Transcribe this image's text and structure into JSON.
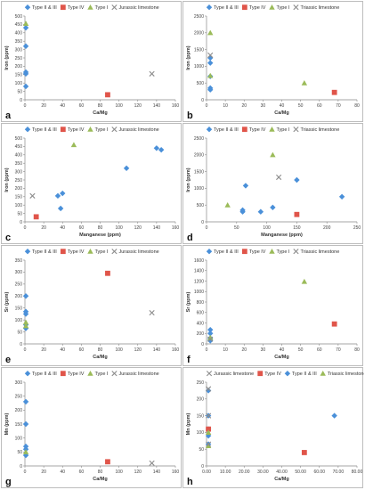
{
  "colors": {
    "Type II & III": "#4a90d9",
    "Type IV": "#e0554a",
    "Type I": "#9bbb59",
    "Jurassic limestone": "#8c8c8c",
    "Triassic limestone": "#8c8c8c"
  },
  "marker_shapes": {
    "Type II & III": "diamond",
    "Type IV": "square",
    "Type I": "triangle",
    "Jurassic limestone": "cross",
    "Triassic limestone": "cross"
  },
  "chart_data": [
    {
      "type": "scatter",
      "letter": "a",
      "xlabel": "Ca/Mg",
      "ylabel": "Iron (ppm)",
      "xlim": [
        0,
        160
      ],
      "xticks": [
        "0",
        "20",
        "40",
        "60",
        "80",
        "100",
        "120",
        "140",
        "160"
      ],
      "ylim": [
        0,
        500
      ],
      "yticks": [
        "0",
        "50",
        "100",
        "150",
        "200",
        "250",
        "300",
        "350",
        "400",
        "450",
        "500"
      ],
      "series": [
        {
          "name": "Type II & III",
          "points": [
            [
              1,
              430
            ],
            [
              1,
              320
            ],
            [
              1,
              165
            ],
            [
              1,
              155
            ],
            [
              1,
              80
            ]
          ]
        },
        {
          "name": "Type IV",
          "points": [
            [
              88,
              30
            ]
          ]
        },
        {
          "name": "Type I",
          "points": [
            [
              1,
              455
            ]
          ]
        },
        {
          "name": "Jurassic limestone",
          "points": [
            [
              135,
              155
            ]
          ]
        }
      ]
    },
    {
      "type": "scatter",
      "letter": "b",
      "xlabel": "Ca/Mg",
      "ylabel": "Iron (ppm)",
      "xlim": [
        0,
        80
      ],
      "xticks": [
        "0",
        "10",
        "20",
        "30",
        "40",
        "50",
        "60",
        "70",
        "80"
      ],
      "ylim": [
        0,
        2500
      ],
      "yticks": [
        "0",
        "500",
        "1000",
        "1500",
        "2000",
        "2500"
      ],
      "series": [
        {
          "name": "Type II & III",
          "points": [
            [
              2,
              1250
            ],
            [
              2,
              1100
            ],
            [
              2,
              700
            ],
            [
              2,
              350
            ],
            [
              2,
              300
            ]
          ]
        },
        {
          "name": "Type IV",
          "points": [
            [
              68,
              220
            ]
          ]
        },
        {
          "name": "Type I",
          "points": [
            [
              2,
              2000
            ],
            [
              2,
              720
            ],
            [
              52,
              500
            ]
          ]
        },
        {
          "name": "Triassic limestone",
          "points": [
            [
              2,
              1330
            ]
          ]
        }
      ]
    },
    {
      "type": "scatter",
      "letter": "c",
      "xlabel": "Manganese (ppm)",
      "ylabel": "Iron (ppm)",
      "xlim": [
        0,
        160
      ],
      "xticks": [
        "0",
        "20",
        "40",
        "60",
        "80",
        "100",
        "120",
        "140",
        "160"
      ],
      "ylim": [
        0,
        500
      ],
      "yticks": [
        "0",
        "50",
        "100",
        "150",
        "200",
        "250",
        "300",
        "350",
        "400",
        "450",
        "500"
      ],
      "series": [
        {
          "name": "Type II & III",
          "points": [
            [
              35,
              155
            ],
            [
              38,
              80
            ],
            [
              40,
              170
            ],
            [
              108,
              320
            ],
            [
              140,
              440
            ],
            [
              145,
              430
            ]
          ]
        },
        {
          "name": "Type IV",
          "points": [
            [
              12,
              30
            ]
          ]
        },
        {
          "name": "Type I",
          "points": [
            [
              52,
              460
            ]
          ]
        },
        {
          "name": "Jurassic limestone",
          "points": [
            [
              8,
              155
            ]
          ]
        }
      ]
    },
    {
      "type": "scatter",
      "letter": "d",
      "xlabel": "Manganese (ppm)",
      "ylabel": "Iron (ppm)",
      "xlim": [
        0,
        250
      ],
      "xticks": [
        "0",
        "50",
        "100",
        "150",
        "200",
        "250"
      ],
      "ylim": [
        0,
        2500
      ],
      "yticks": [
        "0",
        "500",
        "1000",
        "1500",
        "2000",
        "2500"
      ],
      "series": [
        {
          "name": "Type II & III",
          "points": [
            [
              60,
              350
            ],
            [
              60,
              300
            ],
            [
              65,
              1080
            ],
            [
              90,
              300
            ],
            [
              110,
              430
            ],
            [
              150,
              1250
            ],
            [
              225,
              750
            ]
          ]
        },
        {
          "name": "Type IV",
          "points": [
            [
              150,
              220
            ]
          ]
        },
        {
          "name": "Type I",
          "points": [
            [
              35,
              500
            ],
            [
              110,
              2000
            ]
          ]
        },
        {
          "name": "Triassic limestone",
          "points": [
            [
              120,
              1330
            ]
          ]
        }
      ]
    },
    {
      "type": "scatter",
      "letter": "e",
      "xlabel": "Ca/Mg",
      "ylabel": "Sr (ppm)",
      "xlim": [
        0,
        160
      ],
      "xticks": [
        "0",
        "20",
        "40",
        "60",
        "80",
        "100",
        "120",
        "140",
        "160"
      ],
      "ylim": [
        0,
        350
      ],
      "yticks": [
        "0",
        "50",
        "100",
        "150",
        "200",
        "250",
        "300",
        "350"
      ],
      "series": [
        {
          "name": "Type II & III",
          "points": [
            [
              1,
              200
            ],
            [
              1,
              135
            ],
            [
              1,
              125
            ],
            [
              1,
              80
            ],
            [
              1,
              65
            ]
          ]
        },
        {
          "name": "Type IV",
          "points": [
            [
              88,
              295
            ]
          ]
        },
        {
          "name": "Type I",
          "points": [
            [
              1,
              90
            ],
            [
              1,
              75
            ]
          ]
        },
        {
          "name": "Jurassic limestone",
          "points": [
            [
              135,
              130
            ]
          ]
        }
      ]
    },
    {
      "type": "scatter",
      "letter": "f",
      "xlabel": "Ca/Mg",
      "ylabel": "Sr (ppm)",
      "xlim": [
        0,
        80
      ],
      "xticks": [
        "0",
        "10",
        "20",
        "30",
        "40",
        "50",
        "60",
        "70",
        "80"
      ],
      "ylim": [
        0,
        1600
      ],
      "yticks": [
        "0",
        "200",
        "400",
        "600",
        "800",
        "1000",
        "1200",
        "1400",
        "1600"
      ],
      "series": [
        {
          "name": "Type II & III",
          "points": [
            [
              2,
              270
            ],
            [
              2,
              200
            ],
            [
              2,
              110
            ],
            [
              2,
              80
            ],
            [
              2,
              60
            ]
          ]
        },
        {
          "name": "Type IV",
          "points": [
            [
              68,
              380
            ]
          ]
        },
        {
          "name": "Type I",
          "points": [
            [
              2,
              120
            ],
            [
              52,
              1190
            ]
          ]
        },
        {
          "name": "Triassic limestone",
          "points": [
            [
              2,
              90
            ]
          ]
        }
      ]
    },
    {
      "type": "scatter",
      "letter": "g",
      "xlabel": "Ca/Mg",
      "ylabel": "Mn (ppm)",
      "xlim": [
        0,
        160
      ],
      "xticks": [
        "0",
        "20",
        "40",
        "60",
        "80",
        "100",
        "120",
        "140",
        "160"
      ],
      "ylim": [
        0,
        300
      ],
      "yticks": [
        "0",
        "50",
        "100",
        "150",
        "200",
        "250",
        "300"
      ],
      "series": [
        {
          "name": "Type II & III",
          "points": [
            [
              1,
              230
            ],
            [
              1,
              150
            ],
            [
              1,
              70
            ],
            [
              1,
              60
            ],
            [
              1,
              38
            ]
          ]
        },
        {
          "name": "Type IV",
          "points": [
            [
              88,
              15
            ]
          ]
        },
        {
          "name": "Type I",
          "points": [
            [
              1,
              50
            ]
          ]
        },
        {
          "name": "Jurassic limestone",
          "points": [
            [
              135,
              10
            ]
          ]
        }
      ]
    },
    {
      "type": "scatter",
      "letter": "h",
      "xlabel": "Ca/Mg",
      "ylabel": "Mn (ppm)",
      "xlim": [
        0,
        80
      ],
      "xticks": [
        "0.00",
        "10.00",
        "20.00",
        "30.00",
        "40.00",
        "50.00",
        "60.00",
        "70.00",
        "80.00"
      ],
      "ylim": [
        0,
        250
      ],
      "yticks": [
        "0",
        "50",
        "100",
        "150",
        "200",
        "250"
      ],
      "legend_order": [
        "Jurassic limestone",
        "Type IV",
        "Type II & III",
        "Type I"
      ],
      "legend_labels": {
        "Jurassic limestone": "Jurassic limestone",
        "Type IV": "Type IV",
        "Type II & III": "Type II & III",
        "Type I": "Triassic limestone"
      },
      "series": [
        {
          "name": "Type II & III",
          "points": [
            [
              1,
              225
            ],
            [
              1,
              150
            ],
            [
              1,
              110
            ],
            [
              1,
              90
            ],
            [
              1,
              65
            ],
            [
              68,
              150
            ]
          ]
        },
        {
          "name": "Type IV",
          "points": [
            [
              1,
              110
            ],
            [
              52,
              40
            ]
          ]
        },
        {
          "name": "Type I",
          "points": [
            [
              1,
              100
            ],
            [
              1,
              60
            ]
          ]
        },
        {
          "name": "Jurassic limestone",
          "points": [
            [
              1,
              230
            ],
            [
              1,
              150
            ],
            [
              1,
              65
            ]
          ]
        }
      ]
    }
  ]
}
